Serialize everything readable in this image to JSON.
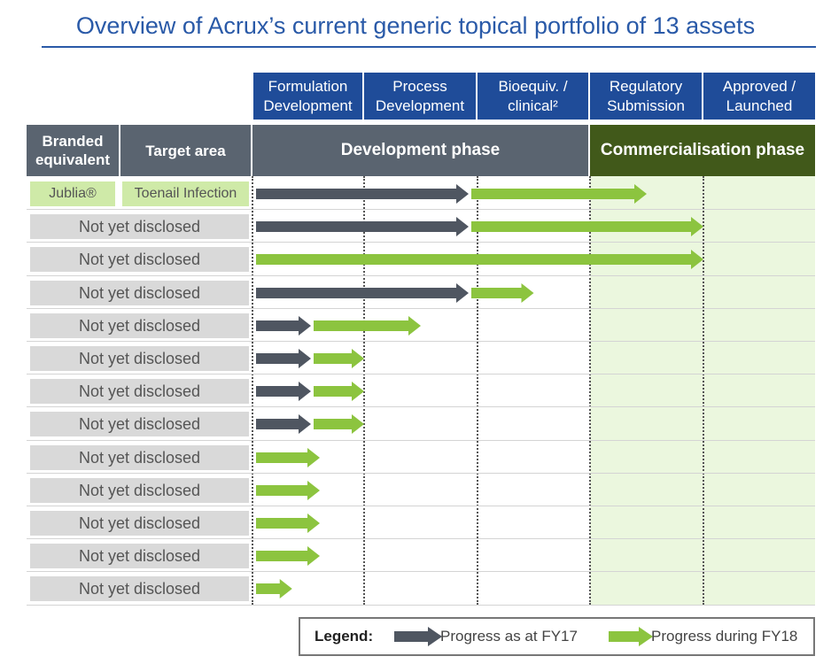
{
  "title": "Overview of Acrux’s current generic topical portfolio of 13 assets",
  "stages": [
    {
      "line1": "Formulation",
      "line2": "Development"
    },
    {
      "line1": "Process",
      "line2": "Development"
    },
    {
      "line1": "Bioequiv. /",
      "line2": "clinical²"
    },
    {
      "line1": "Regulatory",
      "line2": "Submission"
    },
    {
      "line1": "Approved /",
      "line2": "Launched"
    }
  ],
  "headers": {
    "branded_line1": "Branded",
    "branded_line2": "equivalent",
    "target": "Target area",
    "development": "Development phase",
    "commercialisation": "Commercialisation phase"
  },
  "colors": {
    "title": "#2a5aa8",
    "stage_header": "#1f4c99",
    "matrix_header": "#5a6470",
    "commercial_header": "#41591a",
    "commercial_bg": "#ebf7de",
    "progress_fy17": "#4f5661",
    "progress_fy18": "#8cc43f",
    "label_grey": "#d9d9d9",
    "label_green": "#cfeaa8"
  },
  "rows": [
    {
      "branded": "Jublia®",
      "target": "Toenail Infection",
      "fy17": 2.0,
      "fy18": 3.5
    },
    {
      "branded": "Not yet disclosed",
      "target": "",
      "fy17": 2.0,
      "fy18": 4.0
    },
    {
      "branded": "Not yet disclosed",
      "target": "",
      "fy17": 0,
      "fy18": 4.0
    },
    {
      "branded": "Not yet disclosed",
      "target": "",
      "fy17": 2.0,
      "fy18": 2.5
    },
    {
      "branded": "Not yet disclosed",
      "target": "",
      "fy17": 0.6,
      "fy18": 1.5
    },
    {
      "branded": "Not yet disclosed",
      "target": "",
      "fy17": 0.6,
      "fy18": 1.0
    },
    {
      "branded": "Not yet disclosed",
      "target": "",
      "fy17": 0.6,
      "fy18": 1.0
    },
    {
      "branded": "Not yet disclosed",
      "target": "",
      "fy17": 0.6,
      "fy18": 1.0
    },
    {
      "branded": "Not yet disclosed",
      "target": "",
      "fy17": 0,
      "fy18": 0.6
    },
    {
      "branded": "Not yet disclosed",
      "target": "",
      "fy17": 0,
      "fy18": 0.6
    },
    {
      "branded": "Not yet disclosed",
      "target": "",
      "fy17": 0,
      "fy18": 0.6
    },
    {
      "branded": "Not yet disclosed",
      "target": "",
      "fy17": 0,
      "fy18": 0.6
    },
    {
      "branded": "Not yet disclosed",
      "target": "",
      "fy17": 0,
      "fy18": 0.35
    }
  ],
  "legend": {
    "title": "Legend:",
    "fy17": "Progress as at FY17",
    "fy18": "Progress during FY18"
  }
}
